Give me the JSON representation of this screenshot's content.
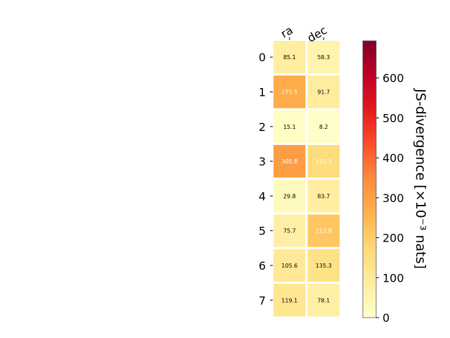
{
  "chart_data": {
    "type": "heatmap",
    "columns": [
      "ra",
      "dec"
    ],
    "rows": [
      "0",
      "1",
      "2",
      "3",
      "4",
      "5",
      "6",
      "7"
    ],
    "values": [
      [
        85.1,
        58.3
      ],
      [
        275.5,
        91.7
      ],
      [
        15.1,
        8.2
      ],
      [
        305.8,
        155.3
      ],
      [
        29.8,
        83.7
      ],
      [
        75.7,
        212.8
      ],
      [
        105.6,
        135.3
      ],
      [
        119.1,
        78.1
      ]
    ],
    "colorbar": {
      "label": "JS-divergence [×10⁻³ nats]",
      "range": [
        0,
        693
      ],
      "ticks": [
        0,
        100,
        200,
        300,
        400,
        500,
        600
      ],
      "colormap": "YlOrRd"
    },
    "title": "",
    "xlabel": "",
    "ylabel": ""
  }
}
